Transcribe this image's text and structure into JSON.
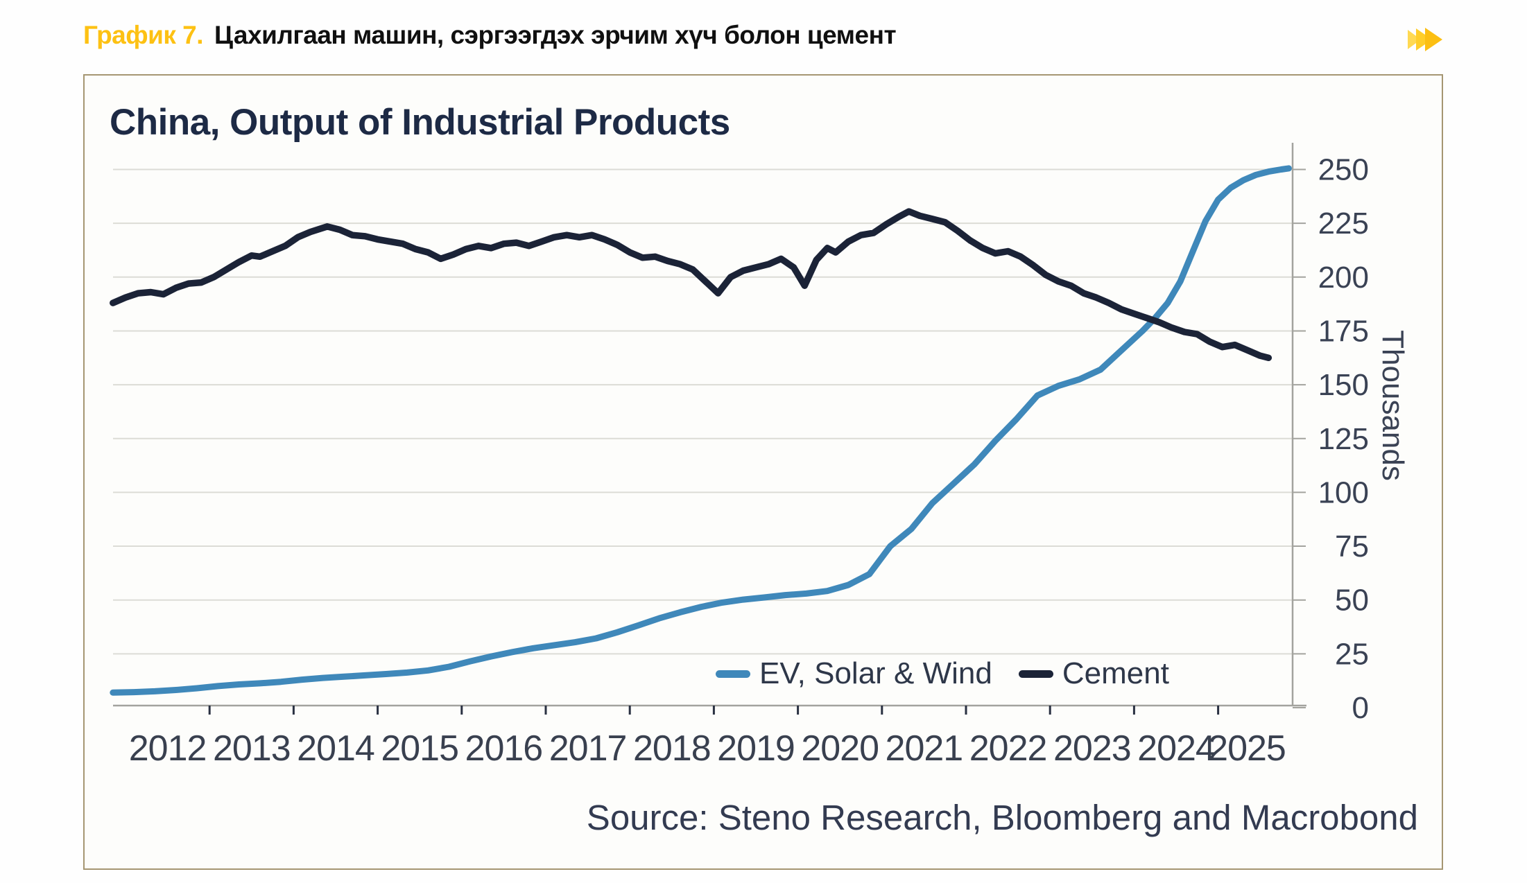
{
  "header": {
    "label": "График 7.",
    "title": "Цахилгаан машин, сэргээгдэх эрчим хүч болон цемент",
    "accent_color": "#fdc113"
  },
  "chart": {
    "title": "China, Output of Industrial Products",
    "source": "Source: Steno Research, Bloomberg and Macrobond",
    "y_axis": {
      "label": "Thousands",
      "ticks": [
        0,
        25,
        50,
        75,
        100,
        125,
        150,
        175,
        200,
        225,
        250
      ]
    },
    "x_axis": {
      "year_labels": [
        "2012",
        "2013",
        "2014",
        "2015",
        "2016",
        "2017",
        "2018",
        "2019",
        "2020",
        "2021",
        "2022",
        "2023",
        "2024",
        "2025"
      ],
      "tick_years": [
        2013,
        2014,
        2015,
        2016,
        2017,
        2018,
        2019,
        2020,
        2021,
        2022,
        2023,
        2024,
        2025
      ]
    },
    "legend": [
      {
        "label": "EV, Solar & Wind",
        "color": "#3f88ba"
      },
      {
        "label": "Cement",
        "color": "#1b2337"
      }
    ]
  },
  "chart_data": {
    "type": "line",
    "title": "China, Output of Industrial Products",
    "xlabel": "",
    "ylabel": "Thousands",
    "ylim": [
      0,
      262
    ],
    "xlim": [
      2011.85,
      2025.89
    ],
    "grid": "horizontal",
    "legend_position": "inside-bottom-right",
    "series": [
      {
        "name": "EV, Solar & Wind",
        "color": "#3f88ba",
        "points": [
          [
            2011.85,
            7
          ],
          [
            2012.1,
            7.2
          ],
          [
            2012.35,
            7.6
          ],
          [
            2012.6,
            8.2
          ],
          [
            2012.85,
            9
          ],
          [
            2013.1,
            10
          ],
          [
            2013.35,
            10.8
          ],
          [
            2013.6,
            11.3
          ],
          [
            2013.85,
            12
          ],
          [
            2014.1,
            13
          ],
          [
            2014.35,
            13.8
          ],
          [
            2014.6,
            14.4
          ],
          [
            2014.85,
            15
          ],
          [
            2015.1,
            15.6
          ],
          [
            2015.35,
            16.3
          ],
          [
            2015.6,
            17.3
          ],
          [
            2015.85,
            19
          ],
          [
            2016.1,
            21.5
          ],
          [
            2016.35,
            23.8
          ],
          [
            2016.6,
            25.8
          ],
          [
            2016.85,
            27.6
          ],
          [
            2017.1,
            29
          ],
          [
            2017.35,
            30.4
          ],
          [
            2017.6,
            32.2
          ],
          [
            2017.85,
            35
          ],
          [
            2018.1,
            38.2
          ],
          [
            2018.35,
            41.5
          ],
          [
            2018.6,
            44.3
          ],
          [
            2018.85,
            46.8
          ],
          [
            2019.1,
            48.8
          ],
          [
            2019.35,
            50.2
          ],
          [
            2019.6,
            51.2
          ],
          [
            2019.85,
            52.3
          ],
          [
            2020.1,
            53
          ],
          [
            2020.35,
            54.2
          ],
          [
            2020.6,
            57
          ],
          [
            2020.85,
            62
          ],
          [
            2021.1,
            75
          ],
          [
            2021.35,
            83
          ],
          [
            2021.6,
            95
          ],
          [
            2021.85,
            104
          ],
          [
            2022.1,
            113
          ],
          [
            2022.35,
            124
          ],
          [
            2022.6,
            134
          ],
          [
            2022.85,
            145
          ],
          [
            2023.1,
            149.5
          ],
          [
            2023.35,
            152.5
          ],
          [
            2023.6,
            157
          ],
          [
            2023.85,
            166
          ],
          [
            2024.1,
            175
          ],
          [
            2024.25,
            181
          ],
          [
            2024.4,
            188
          ],
          [
            2024.55,
            198
          ],
          [
            2024.7,
            212
          ],
          [
            2024.85,
            226
          ],
          [
            2025.0,
            236
          ],
          [
            2025.15,
            241.5
          ],
          [
            2025.3,
            245
          ],
          [
            2025.45,
            247.5
          ],
          [
            2025.6,
            249
          ],
          [
            2025.75,
            250
          ],
          [
            2025.84,
            250.5
          ]
        ]
      },
      {
        "name": "Cement",
        "color": "#1b2337",
        "points": [
          [
            2011.85,
            188
          ],
          [
            2012.0,
            190.5
          ],
          [
            2012.15,
            192.5
          ],
          [
            2012.3,
            193
          ],
          [
            2012.45,
            192
          ],
          [
            2012.6,
            195
          ],
          [
            2012.75,
            197
          ],
          [
            2012.9,
            197.5
          ],
          [
            2013.05,
            200
          ],
          [
            2013.2,
            203.5
          ],
          [
            2013.35,
            207
          ],
          [
            2013.5,
            210
          ],
          [
            2013.6,
            209.5
          ],
          [
            2013.75,
            212
          ],
          [
            2013.9,
            214.5
          ],
          [
            2014.05,
            218.5
          ],
          [
            2014.2,
            221
          ],
          [
            2014.4,
            223.5
          ],
          [
            2014.55,
            222
          ],
          [
            2014.7,
            219.5
          ],
          [
            2014.85,
            219
          ],
          [
            2015.0,
            217.5
          ],
          [
            2015.15,
            216.5
          ],
          [
            2015.3,
            215.5
          ],
          [
            2015.45,
            213
          ],
          [
            2015.6,
            211.5
          ],
          [
            2015.75,
            208.5
          ],
          [
            2015.9,
            210.5
          ],
          [
            2016.05,
            213
          ],
          [
            2016.2,
            214.5
          ],
          [
            2016.35,
            213.5
          ],
          [
            2016.5,
            215.5
          ],
          [
            2016.65,
            216
          ],
          [
            2016.8,
            214.5
          ],
          [
            2016.95,
            216.5
          ],
          [
            2017.1,
            218.5
          ],
          [
            2017.25,
            219.5
          ],
          [
            2017.4,
            218.5
          ],
          [
            2017.55,
            219.5
          ],
          [
            2017.7,
            217.5
          ],
          [
            2017.85,
            215
          ],
          [
            2018.0,
            211.5
          ],
          [
            2018.15,
            209
          ],
          [
            2018.3,
            209.5
          ],
          [
            2018.45,
            207.5
          ],
          [
            2018.6,
            206
          ],
          [
            2018.75,
            203.5
          ],
          [
            2018.9,
            198
          ],
          [
            2019.05,
            192.5
          ],
          [
            2019.2,
            200
          ],
          [
            2019.35,
            203
          ],
          [
            2019.5,
            204.5
          ],
          [
            2019.65,
            206
          ],
          [
            2019.8,
            208.5
          ],
          [
            2019.95,
            204.5
          ],
          [
            2020.08,
            196
          ],
          [
            2020.22,
            208
          ],
          [
            2020.35,
            213.5
          ],
          [
            2020.45,
            211.5
          ],
          [
            2020.6,
            216.5
          ],
          [
            2020.75,
            219.5
          ],
          [
            2020.9,
            220.5
          ],
          [
            2021.05,
            224.5
          ],
          [
            2021.2,
            228
          ],
          [
            2021.32,
            230.5
          ],
          [
            2021.45,
            228.5
          ],
          [
            2021.6,
            227
          ],
          [
            2021.75,
            225.5
          ],
          [
            2021.9,
            221.5
          ],
          [
            2022.05,
            217
          ],
          [
            2022.2,
            213.5
          ],
          [
            2022.35,
            211
          ],
          [
            2022.5,
            212
          ],
          [
            2022.65,
            209.5
          ],
          [
            2022.8,
            205.5
          ],
          [
            2022.95,
            201
          ],
          [
            2023.1,
            198
          ],
          [
            2023.25,
            196
          ],
          [
            2023.4,
            192.5
          ],
          [
            2023.55,
            190.5
          ],
          [
            2023.7,
            188
          ],
          [
            2023.85,
            185
          ],
          [
            2024.0,
            183
          ],
          [
            2024.15,
            181
          ],
          [
            2024.3,
            179
          ],
          [
            2024.45,
            176.5
          ],
          [
            2024.6,
            174.5
          ],
          [
            2024.75,
            173.5
          ],
          [
            2024.9,
            170
          ],
          [
            2025.05,
            167.5
          ],
          [
            2025.2,
            168.5
          ],
          [
            2025.35,
            166
          ],
          [
            2025.5,
            163.5
          ],
          [
            2025.6,
            162.5
          ]
        ]
      }
    ]
  }
}
